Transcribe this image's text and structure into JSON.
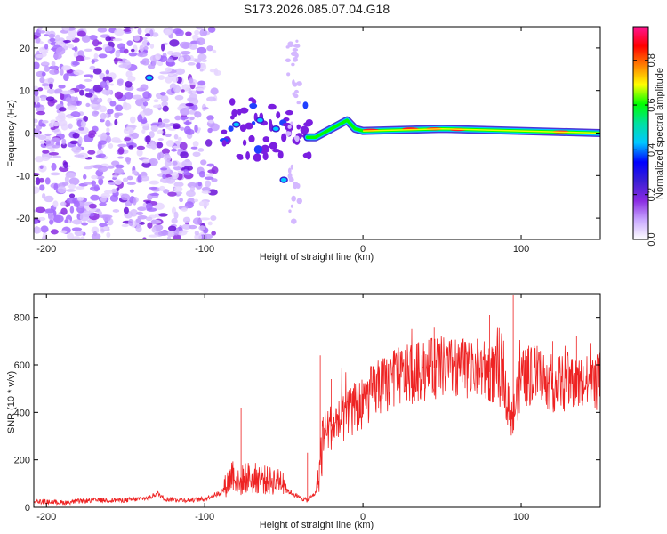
{
  "title": "S173.2026.085.07.04.G18",
  "chart_data": [
    {
      "type": "heatmap",
      "name": "spectrogram",
      "xlabel": "Height of straight line (km)",
      "ylabel": "Frequency (Hz)",
      "xlim": [
        -208,
        150
      ],
      "ylim": [
        -25,
        25
      ],
      "xticks": [
        -200,
        -100,
        0,
        100
      ],
      "yticks": [
        -20,
        -10,
        0,
        10,
        20
      ],
      "xtick_labels": [
        "-200",
        "-100",
        "0",
        "100"
      ],
      "ytick_labels": [
        "-20",
        "-10",
        "0",
        "10",
        "20"
      ],
      "ridge": [
        {
          "x": -35,
          "y": -1
        },
        {
          "x": -30,
          "y": -1
        },
        {
          "x": -25,
          "y": 0
        },
        {
          "x": -20,
          "y": 1
        },
        {
          "x": -15,
          "y": 2
        },
        {
          "x": -10,
          "y": 3
        },
        {
          "x": -5,
          "y": 1
        },
        {
          "x": 0,
          "y": 0.5
        },
        {
          "x": 50,
          "y": 1
        },
        {
          "x": 100,
          "y": 0.5
        },
        {
          "x": 150,
          "y": 0
        }
      ],
      "colorbar": {
        "label": "Normalized spectral amplitude",
        "range": [
          0,
          0.95
        ],
        "ticks": [
          0.0,
          0.2,
          0.4,
          0.6,
          0.8
        ],
        "tick_labels": [
          "0.0",
          "0.2",
          "0.4",
          "0.6",
          "0.8"
        ],
        "colors": [
          "#ffffff",
          "#c9a8ff",
          "#8a2be2",
          "#3b1fd4",
          "#0000ff",
          "#00c8ff",
          "#00e0a0",
          "#00ff00",
          "#ffff00",
          "#ff8000",
          "#ff0000",
          "#ff1493"
        ]
      }
    },
    {
      "type": "line",
      "name": "snr",
      "xlabel": "Height of straight line (km)",
      "ylabel": "SNR (10 * v/v)",
      "xlim": [
        -208,
        150
      ],
      "ylim": [
        0,
        900
      ],
      "xticks": [
        -200,
        -100,
        0,
        100
      ],
      "yticks": [
        0,
        200,
        400,
        600,
        800
      ],
      "xtick_labels": [
        "-200",
        "-100",
        "0",
        "100"
      ],
      "ytick_labels": [
        "0",
        "200",
        "400",
        "600",
        "800"
      ],
      "color": "#ee2222",
      "x": [
        -208,
        -190,
        -170,
        -150,
        -135,
        -130,
        -125,
        -110,
        -100,
        -95,
        -90,
        -85,
        -82,
        -80,
        -78,
        -75,
        -70,
        -65,
        -60,
        -55,
        -50,
        -48,
        -45,
        -40,
        -35,
        -30,
        -28,
        -26,
        -24,
        -22,
        -20,
        -15,
        -10,
        -5,
        0,
        5,
        10,
        15,
        20,
        25,
        30,
        40,
        50,
        60,
        70,
        80,
        88,
        90,
        93,
        95,
        97,
        100,
        110,
        120,
        130,
        140,
        150
      ],
      "values": [
        25,
        20,
        30,
        30,
        40,
        60,
        35,
        30,
        35,
        50,
        60,
        110,
        150,
        120,
        90,
        130,
        120,
        125,
        110,
        115,
        120,
        70,
        60,
        40,
        30,
        60,
        120,
        250,
        320,
        330,
        340,
        360,
        380,
        420,
        440,
        480,
        500,
        520,
        540,
        555,
        560,
        580,
        590,
        580,
        590,
        570,
        540,
        500,
        420,
        380,
        460,
        540,
        560,
        520,
        530,
        520,
        530
      ],
      "peaks": [
        {
          "x": -77,
          "y": 420
        },
        {
          "x": -35,
          "y": 230
        },
        {
          "x": -27,
          "y": 640
        },
        {
          "x": -20,
          "y": 540
        },
        {
          "x": 12,
          "y": 710
        },
        {
          "x": 45,
          "y": 760
        },
        {
          "x": 80,
          "y": 810
        },
        {
          "x": 95,
          "y": 895
        },
        {
          "x": 120,
          "y": 700
        },
        {
          "x": 135,
          "y": 720
        }
      ]
    }
  ]
}
